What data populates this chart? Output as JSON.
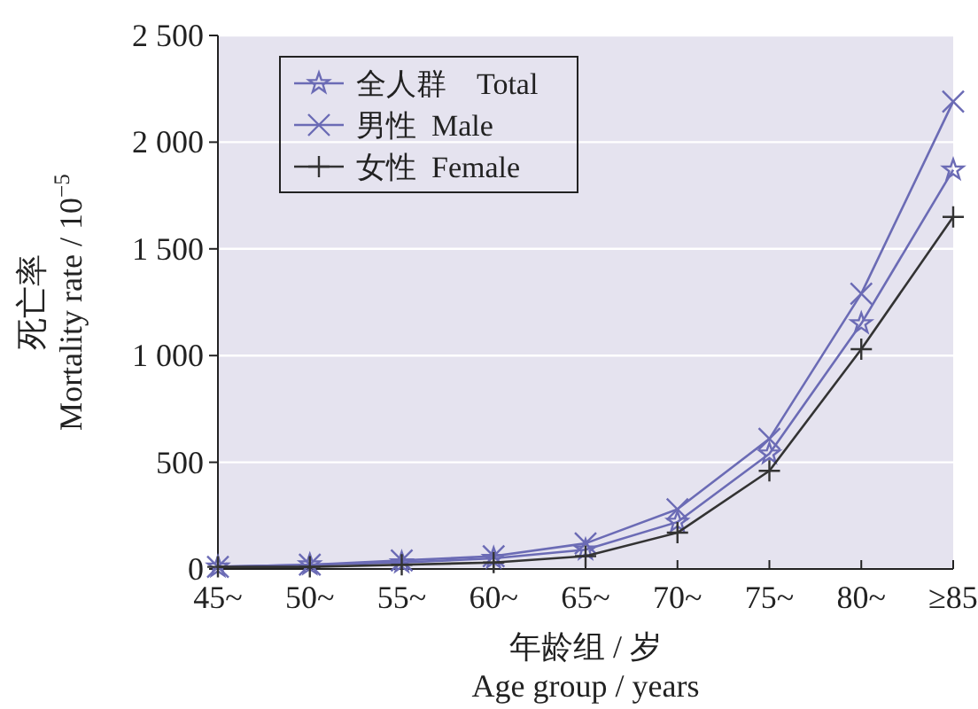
{
  "chart_data": {
    "type": "line",
    "categories": [
      "45~",
      "50~",
      "55~",
      "60~",
      "65~",
      "70~",
      "75~",
      "80~",
      "≥85"
    ],
    "series": [
      {
        "name": "全人群　Total",
        "color": "#6b6bb5",
        "marker": "star",
        "values": [
          10,
          20,
          30,
          50,
          90,
          220,
          540,
          1150,
          1870
        ]
      },
      {
        "name": "男性  Male",
        "color": "#6b6bb5",
        "marker": "x",
        "values": [
          10,
          20,
          40,
          60,
          120,
          280,
          610,
          1290,
          2190
        ]
      },
      {
        "name": "女性  Female",
        "color": "#333333",
        "marker": "cross",
        "values": [
          10,
          10,
          20,
          30,
          60,
          170,
          460,
          1030,
          1650
        ]
      }
    ],
    "ylim": [
      0,
      2500
    ],
    "yticks": [
      0,
      500,
      {
        "value": 1000,
        "label": "1 000"
      },
      {
        "value": 1500,
        "label": "1 500"
      },
      {
        "value": 2000,
        "label": "2 000"
      },
      {
        "value": 2500,
        "label": "2 500"
      }
    ],
    "ylabel": "死亡率\nMortality rate / 10$^{−5}$",
    "xlabel": "年龄组 / 岁\nAge group / years",
    "grid": "y",
    "legend": "top left",
    "line_style": "solid"
  }
}
